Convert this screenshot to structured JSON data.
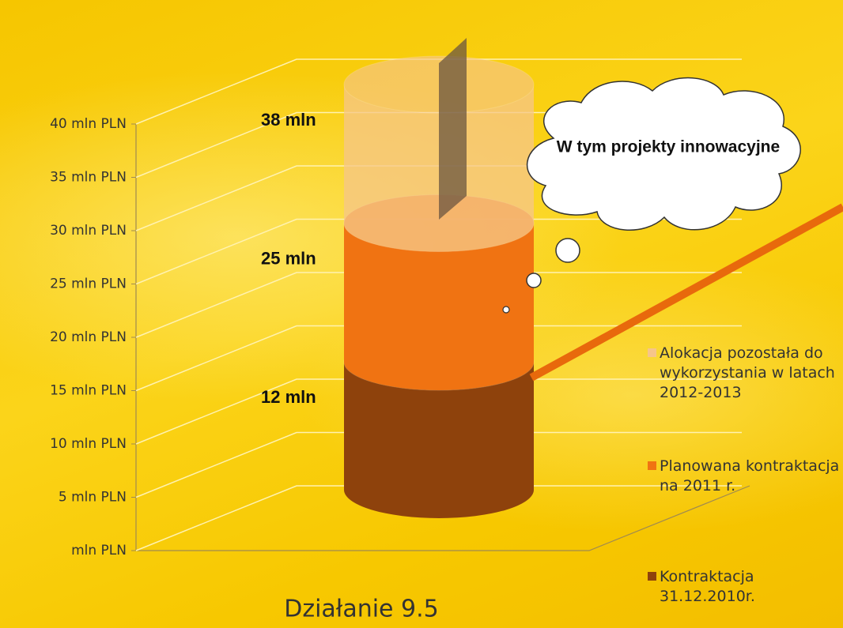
{
  "chart_data": {
    "type": "stacked-cylinder",
    "categories": [
      "Działanie 9.5"
    ],
    "series": [
      {
        "name": "Kontraktacja 31.12.2010r.",
        "color": "#8e420c",
        "values": [
          12
        ]
      },
      {
        "name": "Planowana kontraktacja na 2011 r.",
        "color": "#f07312",
        "values": [
          13
        ]
      },
      {
        "name": "Alokacja pozostała do wykorzystania w latach 2012-2013",
        "color": "#f6c58a",
        "values": [
          13
        ]
      }
    ],
    "annotations": [
      "12 mln",
      "25 mln",
      "38 mln",
      "W tym projekty innowacyjne"
    ],
    "ylim": [
      0,
      40
    ],
    "yticks": [
      {
        "value": 0,
        "label": "mln PLN"
      },
      {
        "value": 5,
        "label": "5 mln PLN"
      },
      {
        "value": 10,
        "label": "10 mln PLN"
      },
      {
        "value": 15,
        "label": "15 mln PLN"
      },
      {
        "value": 20,
        "label": "20 mln PLN"
      },
      {
        "value": 25,
        "label": "25 mln PLN"
      },
      {
        "value": 30,
        "label": "30 mln PLN"
      },
      {
        "value": 35,
        "label": "35 mln PLN"
      },
      {
        "value": 40,
        "label": "40 mln PLN"
      }
    ],
    "grid": true,
    "legend": "right"
  }
}
